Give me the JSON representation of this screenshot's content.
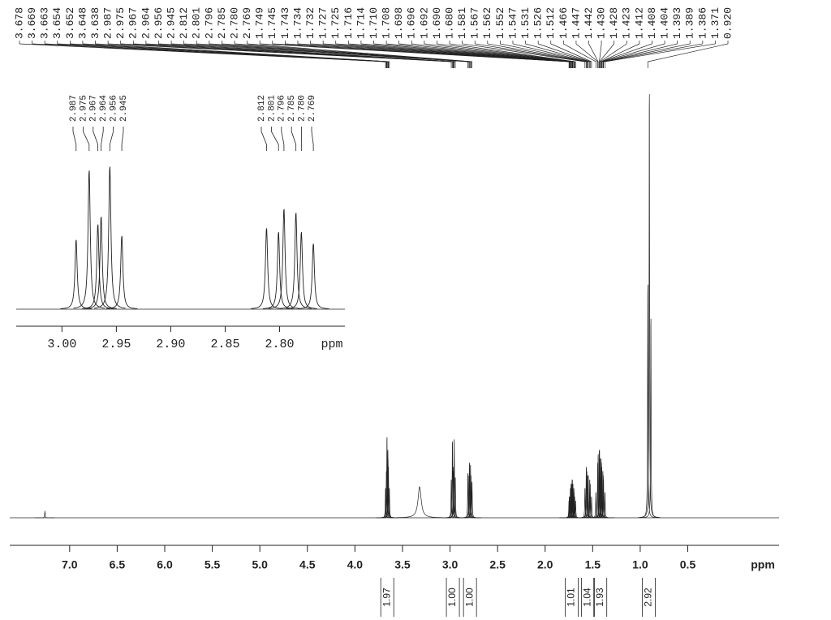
{
  "chart_data": [
    {
      "type": "nmr",
      "x_label": "ppm",
      "xlim": [
        7.63,
        -0.46
      ],
      "xticks": [
        {
          "value": 7,
          "label": "7.0"
        },
        6.5,
        {
          "value": 6,
          "label": "6.0"
        },
        5.5,
        {
          "value": 5,
          "label": "5.0"
        },
        4.5,
        {
          "value": 4,
          "label": "4.0"
        },
        3.5,
        {
          "value": 3,
          "label": "3.0"
        },
        2.5,
        {
          "value": 2,
          "label": "2.0"
        },
        1.5,
        {
          "value": 1,
          "label": "1.0"
        },
        0.5
      ],
      "peaks": {
        "x": [
          7.26,
          3.678,
          3.669,
          3.663,
          3.654,
          3.652,
          3.648,
          3.638,
          3.32,
          2.987,
          2.975,
          2.967,
          2.964,
          2.956,
          2.945,
          2.812,
          2.801,
          2.796,
          2.785,
          2.78,
          2.769,
          1.749,
          1.745,
          1.743,
          1.734,
          1.732,
          1.727,
          1.725,
          1.716,
          1.714,
          1.71,
          1.708,
          1.698,
          1.696,
          1.692,
          1.69,
          1.68,
          1.581,
          1.567,
          1.562,
          1.552,
          1.547,
          1.531,
          1.526,
          1.512,
          1.466,
          1.447,
          1.442,
          1.43,
          1.428,
          1.423,
          1.412,
          1.408,
          1.404,
          1.393,
          1.389,
          1.386,
          1.371,
          0.92,
          0.904,
          0.888
        ],
        "y": [
          1.5,
          7,
          11,
          19,
          16,
          14,
          12,
          7,
          7,
          9,
          18,
          11,
          12,
          18.5,
          9.5,
          10.5,
          10,
          13,
          12.5,
          10,
          8.5,
          4,
          5,
          5,
          7,
          7,
          8,
          8,
          9,
          9,
          8,
          8,
          7,
          6,
          5,
          5,
          4,
          7,
          12,
          11,
          10,
          10,
          9,
          8,
          5,
          6,
          13,
          15,
          16,
          16,
          14,
          14,
          13,
          12,
          11,
          10,
          9,
          6,
          55,
          100,
          47
        ],
        "width": [
          0.002,
          0.002,
          0.002,
          0.002,
          0.002,
          0.002,
          0.002,
          0.002,
          0.02,
          0.0012,
          0.0012,
          0.0012,
          0.0012,
          0.0012,
          0.0012,
          0.0012,
          0.0012,
          0.0012,
          0.0012,
          0.0012,
          0.0012,
          0.002,
          0.002,
          0.002,
          0.002,
          0.002,
          0.002,
          0.002,
          0.002,
          0.002,
          0.002,
          0.002,
          0.002,
          0.002,
          0.002,
          0.002,
          0.002,
          0.002,
          0.002,
          0.002,
          0.002,
          0.002,
          0.002,
          0.002,
          0.002,
          0.002,
          0.002,
          0.002,
          0.002,
          0.002,
          0.002,
          0.002,
          0.002,
          0.002,
          0.002,
          0.002,
          0.002,
          0.002,
          0.0015,
          0.0015,
          0.0015
        ]
      },
      "peak_labels": [
        3.678,
        3.669,
        3.663,
        3.654,
        3.652,
        3.648,
        3.638,
        2.987,
        2.975,
        2.967,
        2.964,
        2.956,
        2.945,
        2.812,
        2.801,
        2.796,
        2.785,
        {
          "value": 2.78,
          "label": "2.780"
        },
        2.769,
        1.749,
        1.745,
        1.743,
        1.734,
        1.732,
        1.727,
        1.725,
        1.716,
        1.714,
        {
          "value": 1.71,
          "label": "1.710"
        },
        1.708,
        1.698,
        1.696,
        1.692,
        {
          "value": 1.69,
          "label": "1.690"
        },
        {
          "value": 1.68,
          "label": "1.680"
        },
        1.581,
        1.567,
        1.562,
        1.552,
        1.547,
        1.531,
        1.526,
        1.512,
        1.466,
        1.447,
        1.442,
        {
          "value": 1.43,
          "label": "1.430"
        },
        1.428,
        1.423,
        1.412,
        1.408,
        1.404,
        1.393,
        1.389,
        1.386,
        1.371,
        {
          "value": 0.92,
          "label": "0.920"
        }
      ],
      "integrals": {
        "x": [
          3.66,
          2.97,
          2.79,
          1.72,
          1.55,
          1.42,
          0.91
        ],
        "values": [
          1.97,
          1,
          1,
          1.01,
          1.04,
          1.93,
          2.92
        ],
        "value_labels": [
          "1.97",
          "1.00",
          "1.00",
          "1.01",
          "1.04",
          "1.93",
          "2.92"
        ]
      }
    },
    {
      "type": "nmr-inset",
      "x_label": "ppm",
      "xlim": [
        3.042,
        2.74
      ],
      "xticks": [
        {
          "value": 3,
          "label": "3.00"
        },
        2.95,
        {
          "value": 2.9,
          "label": "2.90"
        },
        2.85,
        {
          "value": 2.8,
          "label": "2.80"
        }
      ],
      "peak_labels": [
        2.987,
        2.975,
        2.967,
        2.964,
        2.956,
        2.945,
        2.812,
        2.801,
        2.796,
        2.785,
        {
          "value": 2.78,
          "label": "2.780"
        },
        2.769
      ]
    }
  ]
}
